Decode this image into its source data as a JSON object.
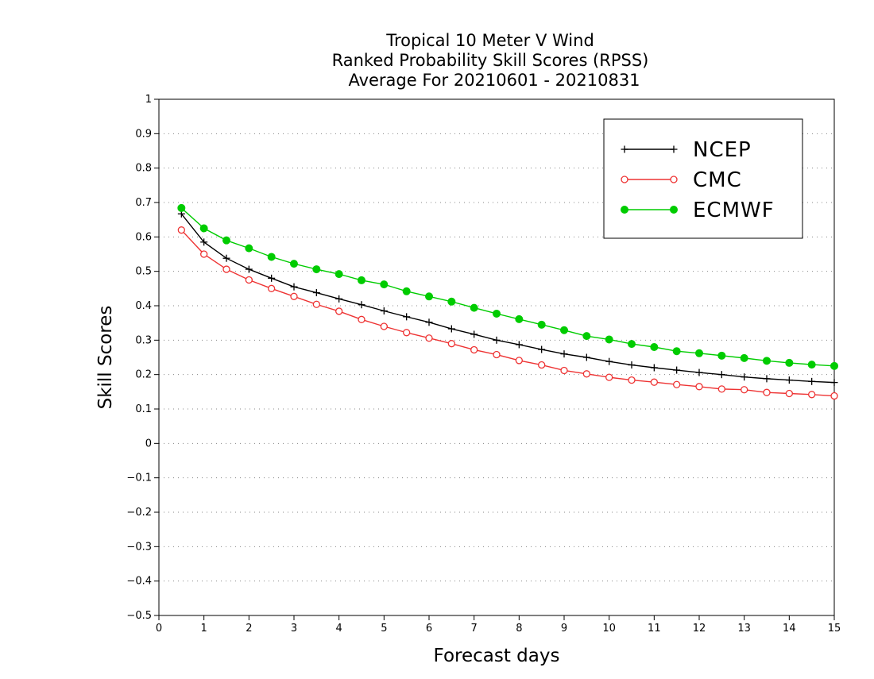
{
  "chart_data": {
    "type": "line",
    "title": [
      "Tropical 10 Meter V Wind",
      "Ranked Probability Skill Scores (RPSS)",
      "Average For 20210601 - 20210831"
    ],
    "xlabel": "Forecast days",
    "ylabel": "Skill Scores",
    "xlim": [
      0,
      15
    ],
    "ylim": [
      -0.5,
      1
    ],
    "xticks": [
      0,
      1,
      2,
      3,
      4,
      5,
      6,
      7,
      8,
      9,
      10,
      11,
      12,
      13,
      14,
      15
    ],
    "yticks": [
      -0.5,
      -0.4,
      -0.3,
      -0.2,
      -0.1,
      0,
      0.1,
      0.2,
      0.3,
      0.4,
      0.5,
      0.6,
      0.7,
      0.8,
      0.9,
      1
    ],
    "ytick_labels": [
      "−0.5",
      "−0.4",
      "−0.3",
      "−0.2",
      "−0.1",
      "0",
      "0.1",
      "0.2",
      "0.3",
      "0.4",
      "0.5",
      "0.6",
      "0.7",
      "0.8",
      "0.9",
      "1"
    ],
    "grid": "horizontal-dotted",
    "legend_position": "top-right",
    "x": [
      0.5,
      1,
      1.5,
      2,
      2.5,
      3,
      3.5,
      4,
      4.5,
      5,
      5.5,
      6,
      6.5,
      7,
      7.5,
      8,
      8.5,
      9,
      9.5,
      10,
      10.5,
      11,
      11.5,
      12,
      12.5,
      13,
      13.5,
      14,
      14.5,
      15
    ],
    "series": [
      {
        "name": "NCEP",
        "color": "#000000",
        "marker": "plus",
        "values": [
          0.667,
          0.585,
          0.538,
          0.506,
          0.48,
          0.455,
          0.438,
          0.42,
          0.403,
          0.385,
          0.368,
          0.352,
          0.333,
          0.317,
          0.3,
          0.287,
          0.273,
          0.26,
          0.25,
          0.238,
          0.228,
          0.22,
          0.213,
          0.206,
          0.2,
          0.193,
          0.188,
          0.184,
          0.18,
          0.177
        ]
      },
      {
        "name": "CMC",
        "color": "#ee3333",
        "marker": "open-circle",
        "values": [
          0.62,
          0.55,
          0.506,
          0.475,
          0.45,
          0.427,
          0.404,
          0.384,
          0.36,
          0.34,
          0.322,
          0.306,
          0.29,
          0.272,
          0.258,
          0.241,
          0.228,
          0.212,
          0.202,
          0.192,
          0.184,
          0.178,
          0.171,
          0.165,
          0.158,
          0.156,
          0.148,
          0.145,
          0.142,
          0.138
        ]
      },
      {
        "name": "ECMWF",
        "color": "#00cc00",
        "marker": "filled-circle",
        "values": [
          0.684,
          0.625,
          0.59,
          0.567,
          0.542,
          0.522,
          0.506,
          0.492,
          0.474,
          0.462,
          0.442,
          0.427,
          0.412,
          0.394,
          0.377,
          0.361,
          0.345,
          0.329,
          0.312,
          0.302,
          0.289,
          0.28,
          0.268,
          0.262,
          0.255,
          0.248,
          0.24,
          0.234,
          0.229,
          0.225
        ]
      }
    ]
  }
}
